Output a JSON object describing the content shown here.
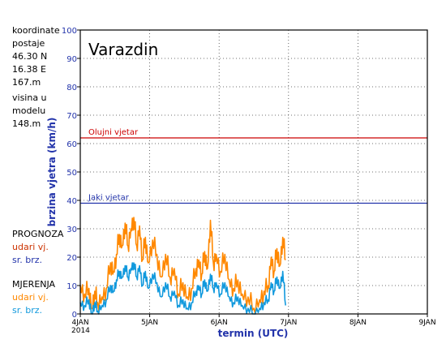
{
  "colors": {
    "orkanski": "#cc0000",
    "jaki": "#2233aa",
    "prognoza_udari": "#ff6600",
    "prognoza_srednja": "#2233aa",
    "mjerenja_udari": "#ff8800",
    "mjerenja_srednja": "#1199dd",
    "forecast_label": "#000000",
    "obs_label": "#000000"
  },
  "info": {
    "lines": [
      "koordinate",
      "postaje",
      "46.30 N",
      "16.38 E",
      "167.m",
      "visina u",
      "modelu",
      "148.m"
    ]
  },
  "legend": {
    "prognoza": "PROGNOZA",
    "prognoza_udari": "udari vj.",
    "prognoza_srednja": "sr. brz.",
    "mjerenja": "MJERENJA",
    "mjerenja_udari": "udari vj.",
    "mjerenja_srednja": "sr. brz."
  },
  "chart_data": {
    "type": "line",
    "title": "Varazdin",
    "xlabel": "termin (UTC)",
    "ylabel": "brzina vjetra (km/h)",
    "ylim": [
      0,
      100
    ],
    "yticks": [
      0,
      10,
      20,
      30,
      40,
      50,
      60,
      70,
      80,
      90,
      100
    ],
    "xlim": [
      "2014-01-04 00:00",
      "2014-01-09 00:00"
    ],
    "xtick_labels": [
      "4JAN",
      "5JAN",
      "6JAN",
      "7JAN",
      "8JAN",
      "9JAN"
    ],
    "xtick_year": "2014",
    "grid": true,
    "reference_lines": [
      {
        "label": "Olujni vjetar",
        "value": 62
      },
      {
        "label": "Jaki vjetar",
        "value": 39
      }
    ],
    "series": [
      {
        "name": "udari vj.",
        "values": [
          [
            "2014-01-04 00:00",
            10
          ],
          [
            "2014-01-04 01:30",
            7
          ],
          [
            "2014-01-04 03:00",
            9
          ],
          [
            "2014-01-04 04:00",
            2
          ],
          [
            "2014-01-04 05:00",
            8
          ],
          [
            "2014-01-04 06:00",
            4
          ],
          [
            "2014-01-04 07:30",
            6
          ],
          [
            "2014-01-04 09:00",
            9
          ],
          [
            "2014-01-04 10:30",
            18
          ],
          [
            "2014-01-04 11:30",
            15
          ],
          [
            "2014-01-04 12:30",
            21
          ],
          [
            "2014-01-04 13:30",
            28
          ],
          [
            "2014-01-04 14:30",
            24
          ],
          [
            "2014-01-04 15:30",
            32
          ],
          [
            "2014-01-04 16:30",
            24
          ],
          [
            "2014-01-04 17:30",
            30
          ],
          [
            "2014-01-04 18:30",
            34
          ],
          [
            "2014-01-04 19:30",
            24
          ],
          [
            "2014-01-04 20:30",
            31
          ],
          [
            "2014-01-04 21:30",
            19
          ],
          [
            "2014-01-04 22:30",
            27
          ],
          [
            "2014-01-04 23:30",
            18
          ],
          [
            "2014-01-05 01:00",
            26
          ],
          [
            "2014-01-05 02:30",
            21
          ],
          [
            "2014-01-05 04:00",
            13
          ],
          [
            "2014-01-05 05:30",
            21
          ],
          [
            "2014-01-05 07:00",
            13
          ],
          [
            "2014-01-05 08:30",
            16
          ],
          [
            "2014-01-05 10:00",
            7
          ],
          [
            "2014-01-05 11:30",
            11
          ],
          [
            "2014-01-05 13:00",
            6
          ],
          [
            "2014-01-05 14:30",
            9
          ],
          [
            "2014-01-05 16:00",
            16
          ],
          [
            "2014-01-05 17:00",
            19
          ],
          [
            "2014-01-05 18:00",
            14
          ],
          [
            "2014-01-05 19:00",
            22
          ],
          [
            "2014-01-05 20:00",
            16
          ],
          [
            "2014-01-05 21:00",
            33
          ],
          [
            "2014-01-05 22:00",
            18
          ],
          [
            "2014-01-05 23:00",
            21
          ],
          [
            "2014-01-06 00:30",
            15
          ],
          [
            "2014-01-06 02:00",
            21
          ],
          [
            "2014-01-06 03:30",
            12
          ],
          [
            "2014-01-06 05:00",
            9
          ],
          [
            "2014-01-06 06:30",
            12
          ],
          [
            "2014-01-06 08:00",
            7
          ],
          [
            "2014-01-06 10:00",
            6
          ],
          [
            "2014-01-06 12:00",
            2
          ],
          [
            "2014-01-06 14:00",
            5
          ],
          [
            "2014-01-06 15:30",
            8
          ],
          [
            "2014-01-06 17:00",
            10
          ],
          [
            "2014-01-06 18:00",
            20
          ],
          [
            "2014-01-06 19:00",
            15
          ],
          [
            "2014-01-06 20:00",
            23
          ],
          [
            "2014-01-06 21:00",
            17
          ],
          [
            "2014-01-06 22:00",
            27
          ],
          [
            "2014-01-06 23:00",
            19
          ]
        ]
      },
      {
        "name": "sr. brz.",
        "values": [
          [
            "2014-01-04 00:00",
            4
          ],
          [
            "2014-01-04 01:30",
            3
          ],
          [
            "2014-01-04 03:00",
            5
          ],
          [
            "2014-01-04 04:00",
            0
          ],
          [
            "2014-01-04 05:00",
            4
          ],
          [
            "2014-01-04 06:00",
            1
          ],
          [
            "2014-01-04 07:30",
            3
          ],
          [
            "2014-01-04 09:00",
            5
          ],
          [
            "2014-01-04 10:30",
            10
          ],
          [
            "2014-01-04 11:30",
            8
          ],
          [
            "2014-01-04 12:30",
            12
          ],
          [
            "2014-01-04 13:30",
            15
          ],
          [
            "2014-01-04 14:30",
            13
          ],
          [
            "2014-01-04 15:30",
            17
          ],
          [
            "2014-01-04 16:30",
            13
          ],
          [
            "2014-01-04 17:30",
            16
          ],
          [
            "2014-01-04 18:30",
            18
          ],
          [
            "2014-01-04 19:30",
            13
          ],
          [
            "2014-01-04 20:30",
            17
          ],
          [
            "2014-01-04 21:30",
            10
          ],
          [
            "2014-01-04 22:30",
            15
          ],
          [
            "2014-01-04 23:30",
            9
          ],
          [
            "2014-01-05 01:00",
            14
          ],
          [
            "2014-01-05 02:30",
            11
          ],
          [
            "2014-01-05 04:00",
            6
          ],
          [
            "2014-01-05 05:30",
            11
          ],
          [
            "2014-01-05 07:00",
            6
          ],
          [
            "2014-01-05 08:30",
            8
          ],
          [
            "2014-01-05 10:00",
            3
          ],
          [
            "2014-01-05 11:30",
            5
          ],
          [
            "2014-01-05 13:00",
            2
          ],
          [
            "2014-01-05 14:30",
            4
          ],
          [
            "2014-01-05 16:00",
            8
          ],
          [
            "2014-01-05 17:00",
            10
          ],
          [
            "2014-01-05 18:00",
            7
          ],
          [
            "2014-01-05 19:00",
            12
          ],
          [
            "2014-01-05 20:00",
            8
          ],
          [
            "2014-01-05 21:00",
            14
          ],
          [
            "2014-01-05 22:00",
            9
          ],
          [
            "2014-01-05 23:00",
            11
          ],
          [
            "2014-01-06 00:30",
            7
          ],
          [
            "2014-01-06 02:00",
            11
          ],
          [
            "2014-01-06 03:30",
            6
          ],
          [
            "2014-01-06 05:00",
            4
          ],
          [
            "2014-01-06 06:30",
            6
          ],
          [
            "2014-01-06 08:00",
            3
          ],
          [
            "2014-01-06 10:00",
            2
          ],
          [
            "2014-01-06 12:00",
            0
          ],
          [
            "2014-01-06 14:00",
            2
          ],
          [
            "2014-01-06 15:30",
            4
          ],
          [
            "2014-01-06 17:00",
            5
          ],
          [
            "2014-01-06 18:00",
            11
          ],
          [
            "2014-01-06 19:00",
            8
          ],
          [
            "2014-01-06 20:00",
            13
          ],
          [
            "2014-01-06 21:00",
            9
          ],
          [
            "2014-01-06 22:00",
            15
          ],
          [
            "2014-01-06 23:00",
            3
          ]
        ]
      }
    ]
  }
}
